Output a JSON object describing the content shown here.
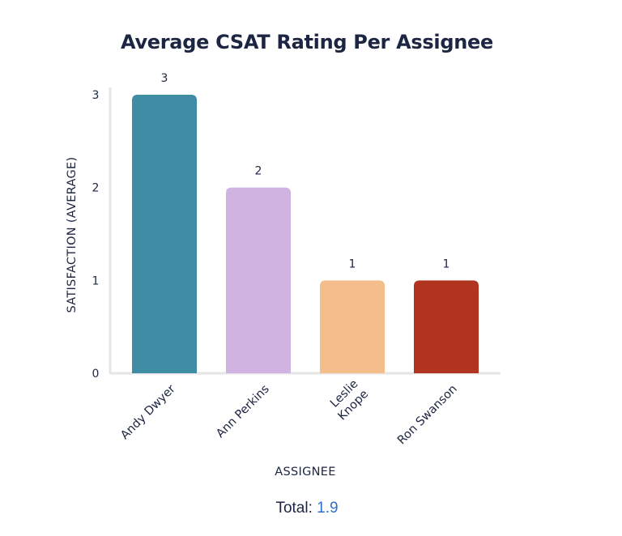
{
  "chart_data": {
    "type": "bar",
    "title": "Average CSAT Rating Per Assignee",
    "xlabel": "ASSIGNEE",
    "ylabel": "SATISFACTION (AVERAGE)",
    "categories": [
      "Andy Dwyer",
      "Ann Perkins",
      "Leslie Knope",
      "Ron Swanson"
    ],
    "category_lines": [
      [
        "Andy Dwyer"
      ],
      [
        "Ann Perkins"
      ],
      [
        "Leslie",
        "Knope"
      ],
      [
        "Ron Swanson"
      ]
    ],
    "values": [
      3,
      2,
      1,
      1
    ],
    "data_labels": [
      "3",
      "2",
      "1",
      "1"
    ],
    "colors": [
      "#3f8da5",
      "#d0b3e1",
      "#f4bd8b",
      "#b0341e"
    ],
    "ylim": [
      0,
      3
    ],
    "yticks": [
      0,
      1,
      2,
      3
    ],
    "grid": false,
    "legend": "none"
  },
  "summary": {
    "label": "Total:",
    "value": "1.9"
  }
}
